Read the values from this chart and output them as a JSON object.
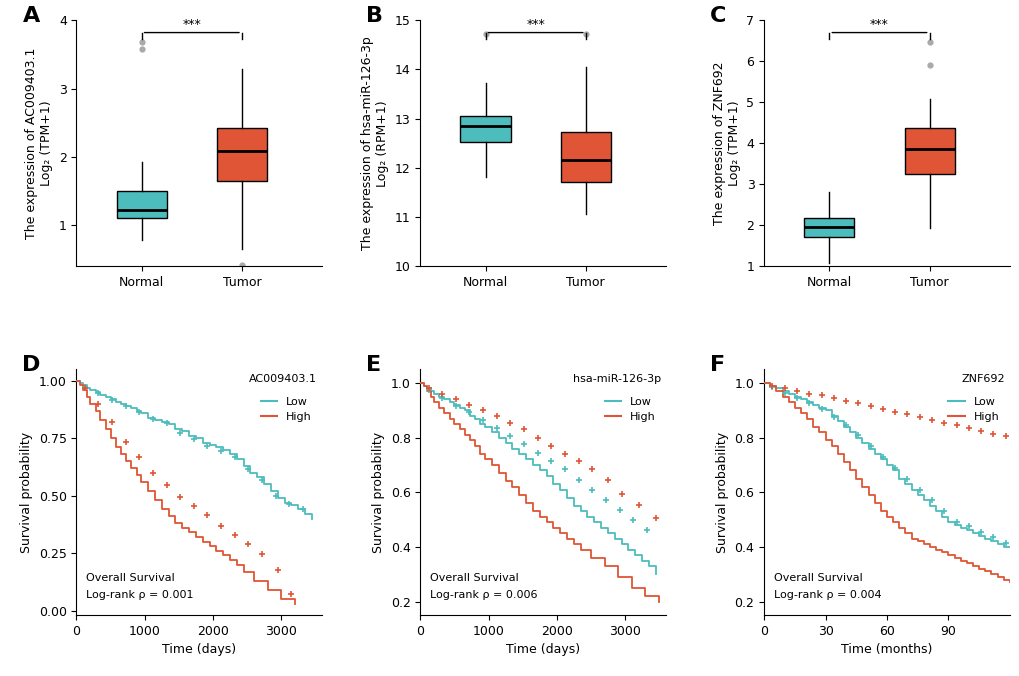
{
  "cyan_color": "#4CBCBC",
  "red_color": "#E05535",
  "panel_label_size": 16,
  "tick_label_size": 9,
  "axis_label_size": 9,
  "boxA": {
    "normal": {
      "q1": 1.1,
      "median": 1.22,
      "q3": 1.5,
      "whislo": 0.78,
      "whishi": 1.93,
      "fliers_above": [
        3.58,
        3.68
      ],
      "fliers_below": []
    },
    "tumor": {
      "q1": 1.65,
      "median": 2.08,
      "q3": 2.42,
      "whislo": 0.65,
      "whishi": 3.28,
      "fliers_above": [],
      "fliers_below": [
        0.42
      ]
    }
  },
  "boxB": {
    "normal": {
      "q1": 12.52,
      "median": 12.85,
      "q3": 13.05,
      "whislo": 11.82,
      "whishi": 13.72,
      "fliers_above": [
        14.72
      ],
      "fliers_below": []
    },
    "tumor": {
      "q1": 11.72,
      "median": 12.15,
      "q3": 12.72,
      "whislo": 11.05,
      "whishi": 14.05,
      "fliers_above": [
        14.72
      ],
      "fliers_below": []
    }
  },
  "boxC": {
    "normal": {
      "q1": 1.72,
      "median": 1.95,
      "q3": 2.18,
      "whislo": 1.08,
      "whishi": 2.82,
      "fliers_above": [],
      "fliers_below": []
    },
    "tumor": {
      "q1": 3.25,
      "median": 3.85,
      "q3": 4.38,
      "whislo": 1.92,
      "whishi": 5.08,
      "fliers_above": [
        5.92,
        6.48
      ],
      "fliers_below": []
    }
  },
  "ylimA": [
    0.4,
    4.0
  ],
  "yticksA": [
    1,
    2,
    3,
    4
  ],
  "ylabelA": "The expression of AC009403.1\nLog₂ (TPM+1)",
  "ylimB": [
    10.0,
    15.0
  ],
  "yticksB": [
    10,
    11,
    12,
    13,
    14,
    15
  ],
  "ylabelB": "The expression of hsa-miR-126-3p\nLog₂ (RPM+1)",
  "ylimC": [
    1.0,
    7.0
  ],
  "yticksC": [
    1,
    2,
    3,
    4,
    5,
    6,
    7
  ],
  "ylabelC": "The expression of ZNF692\nLog₂ (TPM+1)",
  "survD": {
    "title": "AC009403.1",
    "pval": "Log-rank ρ = 0.001",
    "xlabel": "Time (days)",
    "ylabel": "Survival probability",
    "xlim": [
      0,
      3600
    ],
    "xticks": [
      0,
      1000,
      2000,
      3000
    ],
    "ylim": [
      -0.02,
      1.05
    ],
    "yticks": [
      0.0,
      0.25,
      0.5,
      0.75,
      1.0
    ],
    "low_x": [
      0,
      50,
      100,
      150,
      200,
      280,
      350,
      430,
      500,
      580,
      650,
      730,
      800,
      880,
      950,
      1050,
      1150,
      1250,
      1350,
      1450,
      1550,
      1650,
      1750,
      1850,
      1950,
      2050,
      2150,
      2250,
      2350,
      2450,
      2550,
      2650,
      2750,
      2850,
      2950,
      3050,
      3150,
      3250,
      3350,
      3450
    ],
    "low_y": [
      1.0,
      0.99,
      0.98,
      0.97,
      0.96,
      0.95,
      0.94,
      0.93,
      0.92,
      0.91,
      0.9,
      0.89,
      0.88,
      0.87,
      0.86,
      0.84,
      0.83,
      0.82,
      0.81,
      0.79,
      0.78,
      0.76,
      0.75,
      0.73,
      0.72,
      0.71,
      0.7,
      0.68,
      0.66,
      0.63,
      0.6,
      0.58,
      0.55,
      0.52,
      0.49,
      0.47,
      0.46,
      0.44,
      0.42,
      0.4
    ],
    "low_censor_x": [
      120,
      320,
      520,
      720,
      920,
      1120,
      1320,
      1520,
      1720,
      1920,
      2120,
      2320,
      2520,
      2720,
      2920,
      3120,
      3320
    ],
    "low_censor_y": [
      0.975,
      0.945,
      0.915,
      0.89,
      0.865,
      0.835,
      0.815,
      0.775,
      0.745,
      0.715,
      0.695,
      0.67,
      0.615,
      0.57,
      0.5,
      0.465,
      0.44
    ],
    "high_x": [
      0,
      50,
      100,
      150,
      200,
      280,
      350,
      430,
      500,
      580,
      650,
      730,
      800,
      880,
      950,
      1050,
      1150,
      1250,
      1350,
      1450,
      1550,
      1650,
      1750,
      1850,
      1950,
      2050,
      2150,
      2250,
      2350,
      2450,
      2600,
      2800,
      3000,
      3200
    ],
    "high_y": [
      1.0,
      0.98,
      0.96,
      0.93,
      0.9,
      0.87,
      0.83,
      0.79,
      0.75,
      0.71,
      0.68,
      0.65,
      0.62,
      0.59,
      0.56,
      0.52,
      0.48,
      0.44,
      0.41,
      0.38,
      0.36,
      0.34,
      0.32,
      0.3,
      0.28,
      0.26,
      0.24,
      0.22,
      0.2,
      0.17,
      0.13,
      0.09,
      0.05,
      0.03
    ],
    "high_censor_x": [
      120,
      320,
      520,
      720,
      920,
      1120,
      1320,
      1520,
      1720,
      1920,
      2120,
      2320,
      2520,
      2720,
      2950,
      3150
    ],
    "high_censor_y": [
      0.97,
      0.9,
      0.82,
      0.735,
      0.67,
      0.6,
      0.545,
      0.495,
      0.455,
      0.415,
      0.37,
      0.33,
      0.29,
      0.245,
      0.175,
      0.07
    ]
  },
  "survE": {
    "title": "hsa-miR-126-3p",
    "pval": "Log-rank ρ = 0.006",
    "xlabel": "Time (days)",
    "ylabel": "Survival probability",
    "xlim": [
      0,
      3600
    ],
    "xticks": [
      0,
      1000,
      2000,
      3000
    ],
    "ylim": [
      0.15,
      1.05
    ],
    "yticks": [
      0.2,
      0.4,
      0.6,
      0.8,
      1.0
    ],
    "low_x": [
      0,
      50,
      100,
      150,
      200,
      280,
      350,
      430,
      500,
      580,
      650,
      730,
      800,
      880,
      950,
      1050,
      1150,
      1250,
      1350,
      1450,
      1550,
      1650,
      1750,
      1850,
      1950,
      2050,
      2150,
      2250,
      2350,
      2450,
      2550,
      2650,
      2750,
      2850,
      2950,
      3050,
      3150,
      3250,
      3350,
      3450
    ],
    "low_y": [
      1.0,
      0.99,
      0.98,
      0.97,
      0.96,
      0.95,
      0.94,
      0.93,
      0.92,
      0.91,
      0.9,
      0.88,
      0.87,
      0.85,
      0.84,
      0.82,
      0.8,
      0.78,
      0.76,
      0.74,
      0.72,
      0.7,
      0.68,
      0.66,
      0.63,
      0.61,
      0.58,
      0.55,
      0.53,
      0.51,
      0.49,
      0.47,
      0.45,
      0.43,
      0.41,
      0.39,
      0.37,
      0.35,
      0.33,
      0.3
    ],
    "low_censor_x": [
      120,
      320,
      520,
      720,
      920,
      1120,
      1320,
      1520,
      1720,
      1920,
      2120,
      2320,
      2520,
      2720,
      2920,
      3120,
      3320
    ],
    "low_censor_y": [
      0.975,
      0.945,
      0.915,
      0.895,
      0.865,
      0.835,
      0.805,
      0.775,
      0.745,
      0.715,
      0.685,
      0.645,
      0.61,
      0.57,
      0.535,
      0.5,
      0.46
    ],
    "high_x": [
      0,
      50,
      100,
      150,
      200,
      280,
      350,
      430,
      500,
      580,
      650,
      730,
      800,
      880,
      950,
      1050,
      1150,
      1250,
      1350,
      1450,
      1550,
      1650,
      1750,
      1850,
      1950,
      2050,
      2150,
      2250,
      2350,
      2500,
      2700,
      2900,
      3100,
      3300,
      3500
    ],
    "high_y": [
      1.0,
      0.99,
      0.97,
      0.95,
      0.93,
      0.91,
      0.89,
      0.87,
      0.85,
      0.83,
      0.81,
      0.79,
      0.77,
      0.74,
      0.72,
      0.7,
      0.67,
      0.64,
      0.62,
      0.59,
      0.56,
      0.53,
      0.51,
      0.49,
      0.47,
      0.45,
      0.43,
      0.41,
      0.39,
      0.36,
      0.33,
      0.29,
      0.25,
      0.22,
      0.2
    ],
    "high_censor_x": [
      120,
      320,
      520,
      720,
      920,
      1120,
      1320,
      1520,
      1720,
      1920,
      2120,
      2320,
      2520,
      2750,
      2950,
      3200,
      3450
    ],
    "high_censor_y": [
      0.98,
      0.96,
      0.94,
      0.92,
      0.9,
      0.88,
      0.855,
      0.83,
      0.8,
      0.77,
      0.74,
      0.715,
      0.685,
      0.645,
      0.595,
      0.555,
      0.505
    ]
  },
  "survF": {
    "title": "ZNF692",
    "pval": "Log-rank ρ = 0.004",
    "xlabel": "Time (months)",
    "ylabel": "Survival probability",
    "xlim": [
      0,
      120
    ],
    "xticks": [
      0,
      30,
      60,
      90
    ],
    "ylim": [
      0.15,
      1.05
    ],
    "yticks": [
      0.2,
      0.4,
      0.6,
      0.8,
      1.0
    ],
    "low_x": [
      0,
      3,
      6,
      9,
      12,
      15,
      18,
      21,
      24,
      27,
      30,
      33,
      36,
      39,
      42,
      45,
      48,
      51,
      54,
      57,
      60,
      63,
      66,
      69,
      72,
      75,
      78,
      81,
      84,
      87,
      90,
      93,
      96,
      99,
      102,
      105,
      108,
      111,
      114,
      117,
      120
    ],
    "low_y": [
      1.0,
      0.99,
      0.98,
      0.97,
      0.96,
      0.95,
      0.94,
      0.93,
      0.92,
      0.91,
      0.9,
      0.88,
      0.86,
      0.84,
      0.82,
      0.8,
      0.78,
      0.76,
      0.74,
      0.72,
      0.7,
      0.68,
      0.65,
      0.63,
      0.61,
      0.59,
      0.57,
      0.55,
      0.53,
      0.51,
      0.49,
      0.48,
      0.47,
      0.46,
      0.45,
      0.44,
      0.43,
      0.42,
      0.41,
      0.4,
      0.4
    ],
    "low_censor_x": [
      4,
      10,
      16,
      22,
      28,
      34,
      40,
      46,
      52,
      58,
      64,
      70,
      76,
      82,
      88,
      94,
      100,
      106,
      112,
      118
    ],
    "low_censor_y": [
      0.985,
      0.965,
      0.945,
      0.925,
      0.905,
      0.875,
      0.845,
      0.81,
      0.77,
      0.73,
      0.69,
      0.65,
      0.61,
      0.57,
      0.53,
      0.49,
      0.475,
      0.455,
      0.435,
      0.415
    ],
    "high_x": [
      0,
      3,
      6,
      9,
      12,
      15,
      18,
      21,
      24,
      27,
      30,
      33,
      36,
      39,
      42,
      45,
      48,
      51,
      54,
      57,
      60,
      63,
      66,
      69,
      72,
      75,
      78,
      81,
      84,
      87,
      90,
      93,
      96,
      99,
      102,
      105,
      108,
      111,
      114,
      117,
      120
    ],
    "high_y": [
      1.0,
      0.99,
      0.97,
      0.95,
      0.93,
      0.91,
      0.89,
      0.87,
      0.84,
      0.82,
      0.79,
      0.77,
      0.74,
      0.71,
      0.68,
      0.65,
      0.62,
      0.59,
      0.56,
      0.53,
      0.51,
      0.49,
      0.47,
      0.45,
      0.43,
      0.42,
      0.41,
      0.4,
      0.39,
      0.38,
      0.37,
      0.36,
      0.35,
      0.34,
      0.33,
      0.32,
      0.31,
      0.3,
      0.29,
      0.28,
      0.27
    ],
    "high_censor_x": [
      4,
      10,
      16,
      22,
      28,
      34,
      40,
      46,
      52,
      58,
      64,
      70,
      76,
      82,
      88,
      94,
      100,
      106,
      112,
      118
    ],
    "high_censor_y": [
      0.99,
      0.98,
      0.97,
      0.96,
      0.955,
      0.945,
      0.935,
      0.925,
      0.915,
      0.905,
      0.895,
      0.885,
      0.875,
      0.865,
      0.855,
      0.845,
      0.835,
      0.825,
      0.815,
      0.805
    ]
  }
}
